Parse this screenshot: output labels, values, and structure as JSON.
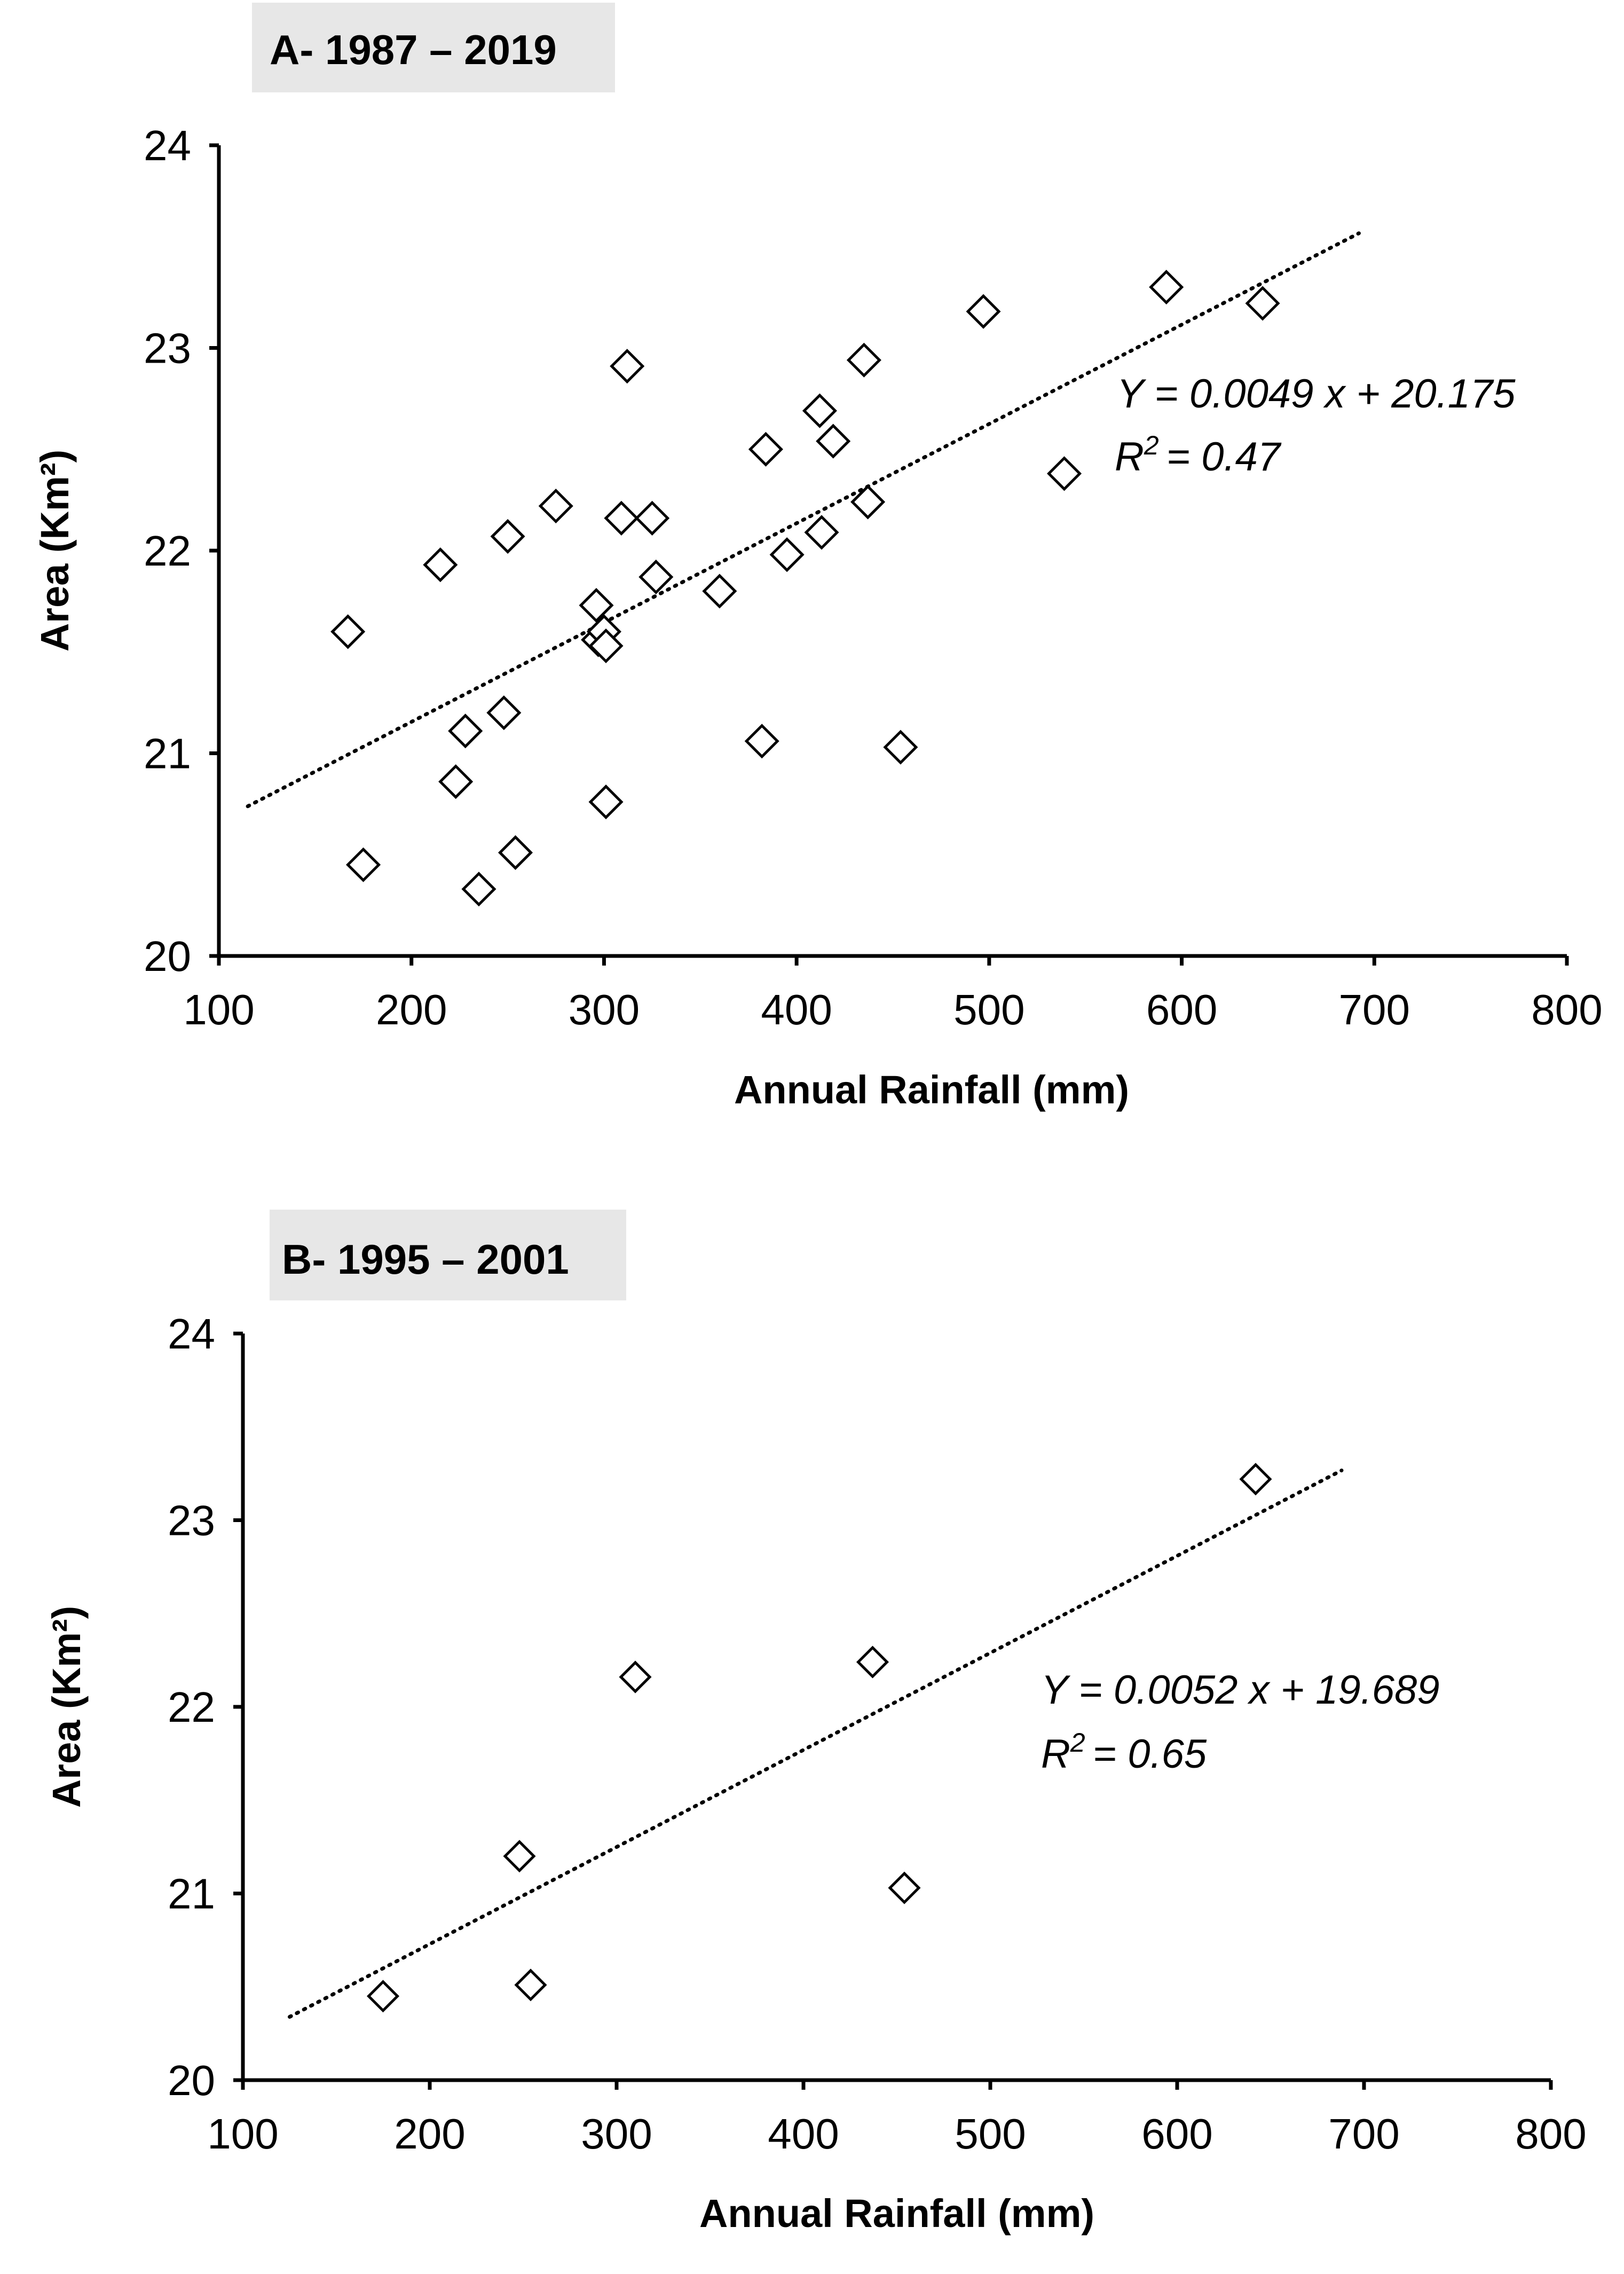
{
  "chart_data": [
    {
      "type": "scatter",
      "title": "A- 1987 – 2019",
      "xlabel": "Annual Rainfall (mm)",
      "ylabel": "Area (Km²)",
      "xlim": [
        100,
        800
      ],
      "ylim": [
        20,
        24
      ],
      "xticks": [
        "100",
        "200",
        "300",
        "400",
        "500",
        "600",
        "700",
        "800"
      ],
      "yticks": [
        "20",
        "21",
        "22",
        "23",
        "24"
      ],
      "grid": false,
      "points": [
        {
          "x": 167,
          "y": 21.6
        },
        {
          "x": 175,
          "y": 20.45
        },
        {
          "x": 215,
          "y": 21.93
        },
        {
          "x": 223,
          "y": 20.86
        },
        {
          "x": 228,
          "y": 21.11
        },
        {
          "x": 235,
          "y": 20.33
        },
        {
          "x": 248,
          "y": 21.2
        },
        {
          "x": 250,
          "y": 22.07
        },
        {
          "x": 254,
          "y": 20.51
        },
        {
          "x": 275,
          "y": 22.22
        },
        {
          "x": 296,
          "y": 21.73
        },
        {
          "x": 297,
          "y": 21.56
        },
        {
          "x": 300,
          "y": 21.6
        },
        {
          "x": 301,
          "y": 21.53
        },
        {
          "x": 301,
          "y": 20.76
        },
        {
          "x": 309,
          "y": 22.16
        },
        {
          "x": 312,
          "y": 22.91
        },
        {
          "x": 325,
          "y": 22.16
        },
        {
          "x": 327,
          "y": 21.87
        },
        {
          "x": 360,
          "y": 21.8
        },
        {
          "x": 382,
          "y": 21.06
        },
        {
          "x": 384,
          "y": 22.5
        },
        {
          "x": 395,
          "y": 21.98
        },
        {
          "x": 412,
          "y": 22.69
        },
        {
          "x": 413,
          "y": 22.09
        },
        {
          "x": 419,
          "y": 22.54
        },
        {
          "x": 435,
          "y": 22.94
        },
        {
          "x": 437,
          "y": 22.24
        },
        {
          "x": 454,
          "y": 21.03
        },
        {
          "x": 497,
          "y": 23.18
        },
        {
          "x": 539,
          "y": 22.38
        },
        {
          "x": 592,
          "y": 23.3
        },
        {
          "x": 642,
          "y": 23.22
        }
      ],
      "trendline": {
        "slope": 0.0049,
        "intercept": 20.175,
        "x_range": [
          115,
          692
        ],
        "style": "dotted"
      },
      "annotation": {
        "equation": "Y = 0.0049 x + 20.175",
        "r2_prefix": "R",
        "r2_sup": "2",
        "r2_value": "= 0.47"
      }
    },
    {
      "type": "scatter",
      "title": "B- 1995 – 2001",
      "xlabel": "Annual Rainfall (mm)",
      "ylabel": "Area (Km²)",
      "xlim": [
        100,
        800
      ],
      "ylim": [
        20,
        24
      ],
      "xticks": [
        "100",
        "200",
        "300",
        "400",
        "500",
        "600",
        "700",
        "800"
      ],
      "yticks": [
        "20",
        "21",
        "22",
        "23",
        "24"
      ],
      "grid": false,
      "points": [
        {
          "x": 175,
          "y": 20.45
        },
        {
          "x": 248,
          "y": 21.2
        },
        {
          "x": 254,
          "y": 20.51
        },
        {
          "x": 310,
          "y": 22.16
        },
        {
          "x": 437,
          "y": 22.24
        },
        {
          "x": 454,
          "y": 21.03
        },
        {
          "x": 642,
          "y": 23.22
        }
      ],
      "trendline": {
        "slope": 0.0052,
        "intercept": 19.689,
        "x_range": [
          125,
          688
        ],
        "style": "dotted"
      },
      "annotation": {
        "equation": "Y = 0.0052 x + 19.689",
        "r2_prefix": "R",
        "r2_sup": "2",
        "r2_value": "= 0.65"
      }
    }
  ]
}
